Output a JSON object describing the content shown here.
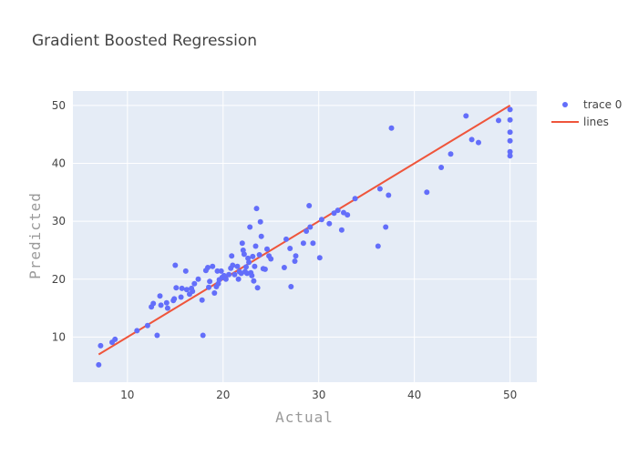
{
  "chart_data": {
    "type": "scatter",
    "title": "Gradient Boosted Regression",
    "xlabel": "Actual",
    "ylabel": "Predicted",
    "xlim": [
      4.3,
      52.8
    ],
    "ylim": [
      2.2,
      52.5
    ],
    "xticks": [
      10,
      20,
      30,
      40,
      50
    ],
    "yticks": [
      10,
      20,
      30,
      40,
      50
    ],
    "grid": true,
    "legend_position": "top-right",
    "colors": {
      "plot_bg": "#e5ecf6",
      "grid": "#ffffff",
      "points": "#636efa",
      "line": "#ef553b"
    },
    "series": [
      {
        "name": "trace 0",
        "mode": "markers",
        "points": [
          [
            7.0,
            5.2
          ],
          [
            7.2,
            8.5
          ],
          [
            8.4,
            9.1
          ],
          [
            8.7,
            9.6
          ],
          [
            11.0,
            11.1
          ],
          [
            12.1,
            12.0
          ],
          [
            12.5,
            15.2
          ],
          [
            12.7,
            15.8
          ],
          [
            13.1,
            10.3
          ],
          [
            13.4,
            17.1
          ],
          [
            13.5,
            15.5
          ],
          [
            14.1,
            15.9
          ],
          [
            14.2,
            15.0
          ],
          [
            14.8,
            16.3
          ],
          [
            14.9,
            16.6
          ],
          [
            15.0,
            22.4
          ],
          [
            15.1,
            18.5
          ],
          [
            15.6,
            16.9
          ],
          [
            15.7,
            18.4
          ],
          [
            16.1,
            21.4
          ],
          [
            16.2,
            18.2
          ],
          [
            16.5,
            17.4
          ],
          [
            16.7,
            18.4
          ],
          [
            16.8,
            17.9
          ],
          [
            17.0,
            19.2
          ],
          [
            17.4,
            20.0
          ],
          [
            17.8,
            16.4
          ],
          [
            17.9,
            10.3
          ],
          [
            18.2,
            21.5
          ],
          [
            18.4,
            22.0
          ],
          [
            18.5,
            18.6
          ],
          [
            18.6,
            19.6
          ],
          [
            18.9,
            22.2
          ],
          [
            19.1,
            17.6
          ],
          [
            19.3,
            18.7
          ],
          [
            19.4,
            21.4
          ],
          [
            19.5,
            19.2
          ],
          [
            19.6,
            19.9
          ],
          [
            19.8,
            21.4
          ],
          [
            19.9,
            20.3
          ],
          [
            20.1,
            20.6
          ],
          [
            20.3,
            20.0
          ],
          [
            20.6,
            20.8
          ],
          [
            20.8,
            21.9
          ],
          [
            20.9,
            24.0
          ],
          [
            21.0,
            22.4
          ],
          [
            21.2,
            20.8
          ],
          [
            21.5,
            22.2
          ],
          [
            21.6,
            20.0
          ],
          [
            21.7,
            21.3
          ],
          [
            21.9,
            21.0
          ],
          [
            22.0,
            26.2
          ],
          [
            22.1,
            25.0
          ],
          [
            22.2,
            24.3
          ],
          [
            22.3,
            21.3
          ],
          [
            22.4,
            22.1
          ],
          [
            22.5,
            21.0
          ],
          [
            22.6,
            23.6
          ],
          [
            22.7,
            22.9
          ],
          [
            22.8,
            29.0
          ],
          [
            22.9,
            21.1
          ],
          [
            23.0,
            20.6
          ],
          [
            23.1,
            23.9
          ],
          [
            23.2,
            19.7
          ],
          [
            23.3,
            22.2
          ],
          [
            23.4,
            25.7
          ],
          [
            23.5,
            32.2
          ],
          [
            23.6,
            18.5
          ],
          [
            23.8,
            24.2
          ],
          [
            23.9,
            29.9
          ],
          [
            24.0,
            27.4
          ],
          [
            24.2,
            21.8
          ],
          [
            24.4,
            21.7
          ],
          [
            24.6,
            25.2
          ],
          [
            24.8,
            24.0
          ],
          [
            25.0,
            23.5
          ],
          [
            26.4,
            22.0
          ],
          [
            26.6,
            26.9
          ],
          [
            27.0,
            25.3
          ],
          [
            27.1,
            18.7
          ],
          [
            27.5,
            23.1
          ],
          [
            27.6,
            24.0
          ],
          [
            28.4,
            26.2
          ],
          [
            28.7,
            28.3
          ],
          [
            29.0,
            32.7
          ],
          [
            29.1,
            29.0
          ],
          [
            29.4,
            26.2
          ],
          [
            30.1,
            23.7
          ],
          [
            30.3,
            30.3
          ],
          [
            31.1,
            29.6
          ],
          [
            31.6,
            31.4
          ],
          [
            32.0,
            31.9
          ],
          [
            32.4,
            28.5
          ],
          [
            32.6,
            31.5
          ],
          [
            33.0,
            31.1
          ],
          [
            33.8,
            33.9
          ],
          [
            36.2,
            25.7
          ],
          [
            36.4,
            35.6
          ],
          [
            37.0,
            29.0
          ],
          [
            37.3,
            34.5
          ],
          [
            37.6,
            46.1
          ],
          [
            41.3,
            35.0
          ],
          [
            42.8,
            39.3
          ],
          [
            43.8,
            41.6
          ],
          [
            45.4,
            48.2
          ],
          [
            46.0,
            44.1
          ],
          [
            46.7,
            43.6
          ],
          [
            48.8,
            47.4
          ],
          [
            50.0,
            49.3
          ],
          [
            50.0,
            47.5
          ],
          [
            50.0,
            45.4
          ],
          [
            50.0,
            43.9
          ],
          [
            50.0,
            42.0
          ],
          [
            50.0,
            41.3
          ]
        ]
      },
      {
        "name": "lines",
        "mode": "lines",
        "points": [
          [
            7.0,
            7.0
          ],
          [
            50.0,
            50.0
          ]
        ]
      }
    ]
  }
}
